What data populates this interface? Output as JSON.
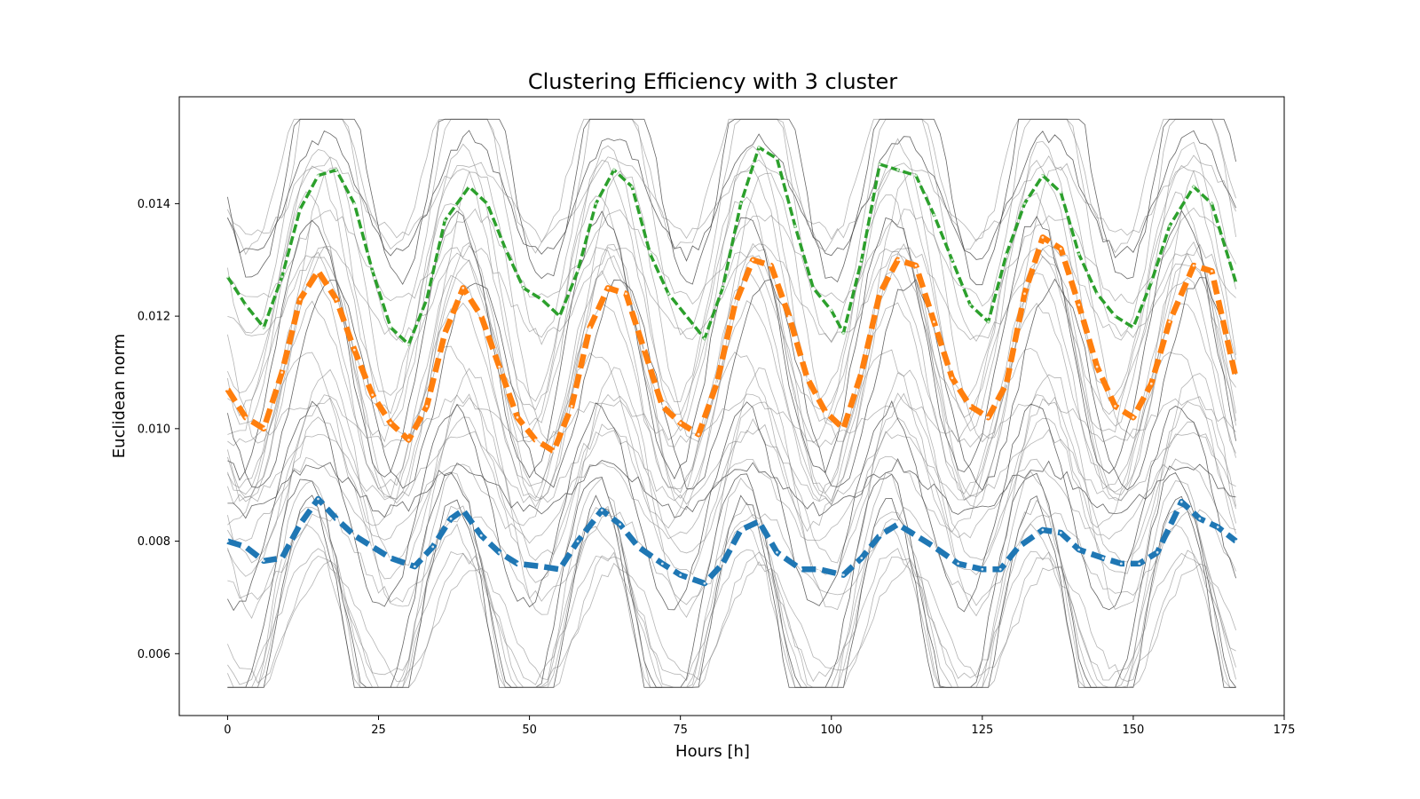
{
  "chart_data": {
    "type": "line",
    "title": "Clustering Efficiency with 3 cluster",
    "xlabel": "Hours [h]",
    "ylabel": "Euclidean norm",
    "xlim": [
      -8,
      175
    ],
    "ylim": [
      0.0049,
      0.0159
    ],
    "xticks": [
      0,
      25,
      50,
      75,
      100,
      125,
      150,
      175
    ],
    "yticks": [
      0.006,
      0.008,
      0.01,
      0.012,
      0.014
    ],
    "ytick_labels": [
      "0.006",
      "0.008",
      "0.010",
      "0.012",
      "0.014"
    ],
    "grid": false,
    "legend": "none",
    "background_series": {
      "count": 36,
      "x_range": [
        0,
        167
      ],
      "level_range": [
        0.0062,
        0.0152
      ],
      "color": "#555555",
      "note_shown": "thin gray individual profiles with a daily cycle, clipped at 0.0155"
    },
    "series": [
      {
        "color": "#1f77b4",
        "style": "dashed-thick",
        "points": [
          [
            0,
            0.008
          ],
          [
            3,
            0.0079
          ],
          [
            6,
            0.00765
          ],
          [
            9,
            0.0077
          ],
          [
            12,
            0.0083
          ],
          [
            15,
            0.00875
          ],
          [
            18,
            0.0084
          ],
          [
            21,
            0.0081
          ],
          [
            24,
            0.0079
          ],
          [
            27,
            0.0077
          ],
          [
            31,
            0.00755
          ],
          [
            34,
            0.0079
          ],
          [
            37,
            0.0084
          ],
          [
            39,
            0.00855
          ],
          [
            42,
            0.0081
          ],
          [
            45,
            0.0078
          ],
          [
            48,
            0.0076
          ],
          [
            52,
            0.00755
          ],
          [
            55,
            0.0075
          ],
          [
            58,
            0.008
          ],
          [
            62,
            0.00855
          ],
          [
            65,
            0.0083
          ],
          [
            68,
            0.0079
          ],
          [
            72,
            0.0076
          ],
          [
            75,
            0.0074
          ],
          [
            79,
            0.00725
          ],
          [
            82,
            0.0076
          ],
          [
            85,
            0.0082
          ],
          [
            88,
            0.00835
          ],
          [
            91,
            0.0078
          ],
          [
            95,
            0.0075
          ],
          [
            98,
            0.0075
          ],
          [
            102,
            0.0074
          ],
          [
            105,
            0.0077
          ],
          [
            108,
            0.0081
          ],
          [
            111,
            0.0083
          ],
          [
            114,
            0.0081
          ],
          [
            117,
            0.0079
          ],
          [
            121,
            0.0076
          ],
          [
            125,
            0.0075
          ],
          [
            128,
            0.0075
          ],
          [
            131,
            0.0079
          ],
          [
            135,
            0.0082
          ],
          [
            138,
            0.00815
          ],
          [
            141,
            0.00785
          ],
          [
            145,
            0.0077
          ],
          [
            148,
            0.0076
          ],
          [
            151,
            0.0076
          ],
          [
            154,
            0.0078
          ],
          [
            158,
            0.0087
          ],
          [
            161,
            0.0084
          ],
          [
            164,
            0.00825
          ],
          [
            167,
            0.008
          ]
        ]
      },
      {
        "color": "#ff7f0e",
        "style": "dashed-thick",
        "points": [
          [
            0,
            0.0107
          ],
          [
            3,
            0.0102
          ],
          [
            6,
            0.01
          ],
          [
            9,
            0.011
          ],
          [
            12,
            0.0123
          ],
          [
            15,
            0.0128
          ],
          [
            18,
            0.0123
          ],
          [
            21,
            0.0114
          ],
          [
            24,
            0.0106
          ],
          [
            27,
            0.0101
          ],
          [
            30,
            0.0098
          ],
          [
            33,
            0.0104
          ],
          [
            36,
            0.0117
          ],
          [
            39,
            0.0125
          ],
          [
            42,
            0.012
          ],
          [
            45,
            0.0111
          ],
          [
            48,
            0.0102
          ],
          [
            51,
            0.0098
          ],
          [
            54,
            0.0096
          ],
          [
            57,
            0.0104
          ],
          [
            60,
            0.0118
          ],
          [
            63,
            0.0125
          ],
          [
            66,
            0.0124
          ],
          [
            69,
            0.0114
          ],
          [
            72,
            0.0104
          ],
          [
            75,
            0.0101
          ],
          [
            78,
            0.0099
          ],
          [
            81,
            0.0108
          ],
          [
            84,
            0.0122
          ],
          [
            87,
            0.013
          ],
          [
            90,
            0.0129
          ],
          [
            93,
            0.012
          ],
          [
            96,
            0.0109
          ],
          [
            99,
            0.0103
          ],
          [
            102,
            0.01
          ],
          [
            105,
            0.011
          ],
          [
            108,
            0.0124
          ],
          [
            111,
            0.013
          ],
          [
            114,
            0.0129
          ],
          [
            117,
            0.0119
          ],
          [
            120,
            0.0109
          ],
          [
            123,
            0.0104
          ],
          [
            126,
            0.0102
          ],
          [
            129,
            0.0108
          ],
          [
            132,
            0.0124
          ],
          [
            135,
            0.0134
          ],
          [
            138,
            0.0132
          ],
          [
            141,
            0.0122
          ],
          [
            144,
            0.0111
          ],
          [
            147,
            0.0104
          ],
          [
            150,
            0.0102
          ],
          [
            153,
            0.0108
          ],
          [
            156,
            0.0119
          ],
          [
            160,
            0.0129
          ],
          [
            163,
            0.0128
          ],
          [
            167,
            0.0109
          ]
        ]
      },
      {
        "color": "#2ca02c",
        "style": "dashed",
        "points": [
          [
            0,
            0.0127
          ],
          [
            3,
            0.0122
          ],
          [
            6,
            0.0118
          ],
          [
            9,
            0.0127
          ],
          [
            12,
            0.0139
          ],
          [
            15,
            0.0145
          ],
          [
            18,
            0.0146
          ],
          [
            21,
            0.014
          ],
          [
            24,
            0.0128
          ],
          [
            27,
            0.0118
          ],
          [
            30,
            0.0115
          ],
          [
            33,
            0.0123
          ],
          [
            36,
            0.0137
          ],
          [
            40,
            0.0143
          ],
          [
            43,
            0.014
          ],
          [
            46,
            0.0132
          ],
          [
            49,
            0.0125
          ],
          [
            52,
            0.0123
          ],
          [
            55,
            0.012
          ],
          [
            58,
            0.0128
          ],
          [
            61,
            0.014
          ],
          [
            64,
            0.0146
          ],
          [
            67,
            0.0143
          ],
          [
            70,
            0.0131
          ],
          [
            73,
            0.0124
          ],
          [
            76,
            0.012
          ],
          [
            79,
            0.0116
          ],
          [
            82,
            0.0125
          ],
          [
            85,
            0.014
          ],
          [
            88,
            0.015
          ],
          [
            91,
            0.0148
          ],
          [
            94,
            0.0136
          ],
          [
            97,
            0.0125
          ],
          [
            100,
            0.0121
          ],
          [
            102,
            0.0117
          ],
          [
            105,
            0.013
          ],
          [
            108,
            0.0147
          ],
          [
            111,
            0.0146
          ],
          [
            114,
            0.0145
          ],
          [
            117,
            0.0138
          ],
          [
            120,
            0.013
          ],
          [
            123,
            0.0122
          ],
          [
            126,
            0.0119
          ],
          [
            129,
            0.0131
          ],
          [
            132,
            0.014
          ],
          [
            135,
            0.0145
          ],
          [
            138,
            0.0142
          ],
          [
            141,
            0.0131
          ],
          [
            144,
            0.0124
          ],
          [
            147,
            0.012
          ],
          [
            150,
            0.0118
          ],
          [
            153,
            0.0126
          ],
          [
            156,
            0.0136
          ],
          [
            160,
            0.0143
          ],
          [
            163,
            0.014
          ],
          [
            167,
            0.0126
          ]
        ]
      }
    ]
  }
}
